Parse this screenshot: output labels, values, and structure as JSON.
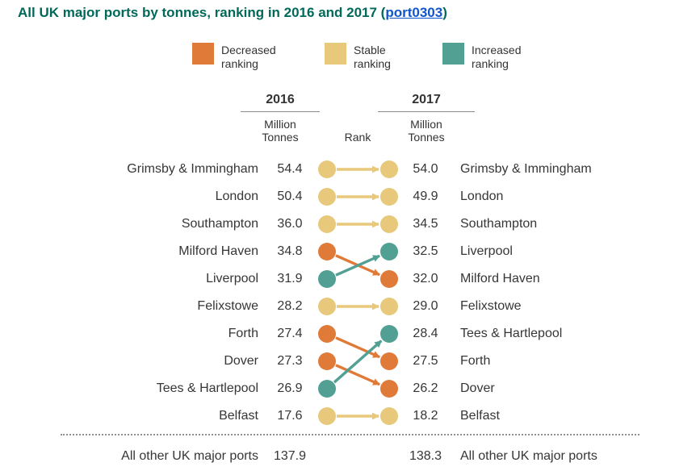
{
  "title": {
    "text": "All UK major ports by tonnes, ranking in 2016 and 2017 (",
    "link": "port0303",
    "suffix": ")"
  },
  "legend": [
    {
      "key": "decreased",
      "label": "Decreased ranking",
      "color": "#E07A38"
    },
    {
      "key": "stable",
      "label": "Stable ranking",
      "color": "#E8C87A"
    },
    {
      "key": "increased",
      "label": "Increased ranking",
      "color": "#51A093"
    }
  ],
  "columns": {
    "year_left": "2016",
    "year_right": "2017",
    "unit_left": "Million Tonnes",
    "rank_label": "Rank",
    "unit_right": "Million Tonnes"
  },
  "chart_data": {
    "type": "slopegraph",
    "title": "All UK major ports by tonnes, ranking in 2016 and 2017 (port0303)",
    "status_colors": {
      "decreased": "#E07A38",
      "stable": "#E8C87A",
      "increased": "#51A093"
    },
    "rows": [
      {
        "rank": 1,
        "left_port": "Grimsby & Immingham",
        "left_value": "54.4",
        "right_value": "54.0",
        "right_port": "Grimsby & Immingham",
        "left_status": "stable",
        "right_status": "stable"
      },
      {
        "rank": 2,
        "left_port": "London",
        "left_value": "50.4",
        "right_value": "49.9",
        "right_port": "London",
        "left_status": "stable",
        "right_status": "stable"
      },
      {
        "rank": 3,
        "left_port": "Southampton",
        "left_value": "36.0",
        "right_value": "34.5",
        "right_port": "Southampton",
        "left_status": "stable",
        "right_status": "stable"
      },
      {
        "rank": 4,
        "left_port": "Milford Haven",
        "left_value": "34.8",
        "right_value": "32.5",
        "right_port": "Liverpool",
        "left_status": "decreased",
        "right_status": "increased"
      },
      {
        "rank": 5,
        "left_port": "Liverpool",
        "left_value": "31.9",
        "right_value": "32.0",
        "right_port": "Milford Haven",
        "left_status": "increased",
        "right_status": "decreased"
      },
      {
        "rank": 6,
        "left_port": "Felixstowe",
        "left_value": "28.2",
        "right_value": "29.0",
        "right_port": "Felixstowe",
        "left_status": "stable",
        "right_status": "stable"
      },
      {
        "rank": 7,
        "left_port": "Forth",
        "left_value": "27.4",
        "right_value": "28.4",
        "right_port": "Tees & Hartlepool",
        "left_status": "decreased",
        "right_status": "increased"
      },
      {
        "rank": 8,
        "left_port": "Dover",
        "left_value": "27.3",
        "right_value": "27.5",
        "right_port": "Forth",
        "left_status": "decreased",
        "right_status": "decreased"
      },
      {
        "rank": 9,
        "left_port": "Tees & Hartlepool",
        "left_value": "26.9",
        "right_value": "26.2",
        "right_port": "Dover",
        "left_status": "increased",
        "right_status": "decreased"
      },
      {
        "rank": 10,
        "left_port": "Belfast",
        "left_value": "17.6",
        "right_value": "18.2",
        "right_port": "Belfast",
        "left_status": "stable",
        "right_status": "stable"
      }
    ],
    "arrows": [
      {
        "from_rank": 1,
        "to_rank": 1,
        "status": "stable"
      },
      {
        "from_rank": 2,
        "to_rank": 2,
        "status": "stable"
      },
      {
        "from_rank": 3,
        "to_rank": 3,
        "status": "stable"
      },
      {
        "from_rank": 4,
        "to_rank": 5,
        "status": "decreased"
      },
      {
        "from_rank": 5,
        "to_rank": 4,
        "status": "increased"
      },
      {
        "from_rank": 6,
        "to_rank": 6,
        "status": "stable"
      },
      {
        "from_rank": 7,
        "to_rank": 8,
        "status": "decreased"
      },
      {
        "from_rank": 8,
        "to_rank": 9,
        "status": "decreased"
      },
      {
        "from_rank": 9,
        "to_rank": 7,
        "status": "increased"
      },
      {
        "from_rank": 10,
        "to_rank": 10,
        "status": "stable"
      }
    ],
    "footer": {
      "left_label": "All other UK major ports",
      "left_value": "137.9",
      "right_value": "138.3",
      "right_label": "All other UK major ports"
    }
  }
}
